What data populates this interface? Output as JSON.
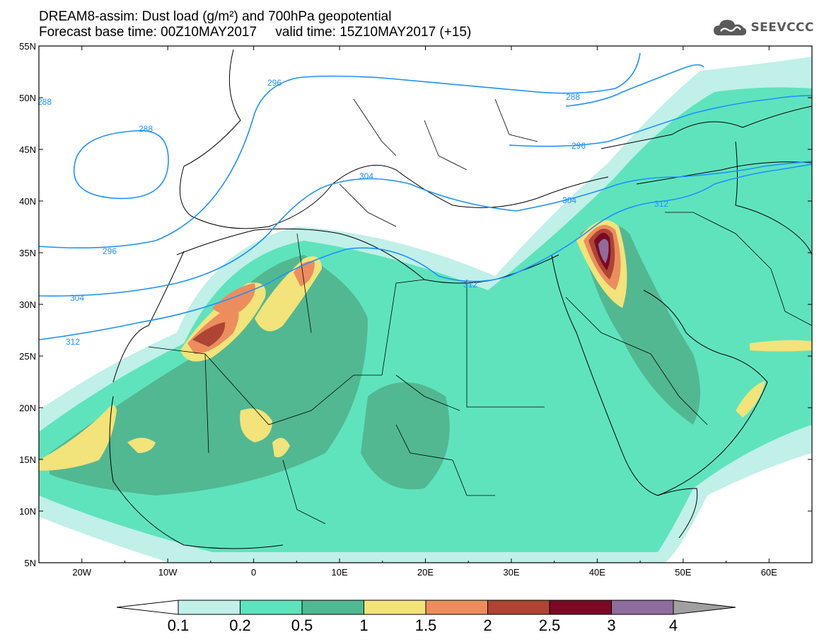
{
  "title": {
    "line1": "DREAM8-assim: Dust load (g/m²) and 700hPa geopotential",
    "line2": "Forecast base time: 00Z10MAY2017     valid time: 15Z10MAY2017 (+15)"
  },
  "logo": {
    "text": "SEEVCCC",
    "icon": "cloud-icon"
  },
  "map": {
    "lon_range": [
      -25,
      65
    ],
    "lat_range": [
      5,
      55
    ],
    "lat_ticks": [
      "5N",
      "10N",
      "15N",
      "20N",
      "25N",
      "30N",
      "35N",
      "40N",
      "45N",
      "50N",
      "55N"
    ],
    "lon_ticks": [
      "20W",
      "10W",
      "0",
      "10E",
      "20E",
      "30E",
      "40E",
      "50E",
      "60E"
    ],
    "contour_labels": [
      "296",
      "288",
      "288",
      "296",
      "304",
      "304",
      "312",
      "296",
      "304",
      "312",
      "288",
      "312"
    ],
    "colors": {
      "contour": "#1e90ff",
      "border": "#000000"
    }
  },
  "colorbar": {
    "labels": [
      "0.1",
      "0.2",
      "0.5",
      "1",
      "1.5",
      "2",
      "2.5",
      "3",
      "4"
    ],
    "colors": [
      "#ffffff",
      "#c0f0e8",
      "#5fe3bd",
      "#52b892",
      "#f2e37a",
      "#ec8d5e",
      "#ad4434",
      "#7a0a24",
      "#8f6c9e",
      "#a0a0a0"
    ]
  }
}
